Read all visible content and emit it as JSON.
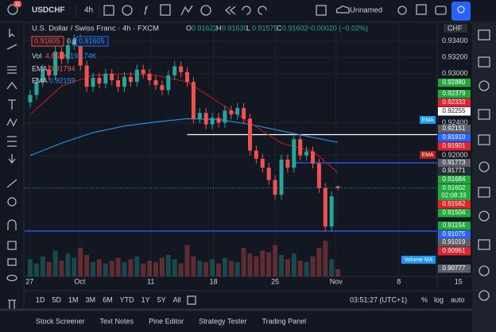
{
  "toolbar": {
    "symbol": "USDCHF",
    "interval": "4h",
    "badge": "11",
    "layout": "Unnamed"
  },
  "legend": {
    "title": "U.S. Dollar / Swiss Franc · 4h · FXCM",
    "ohlc": [
      {
        "key": "O",
        "value": "0.91622"
      },
      {
        "key": "H",
        "value": "0.91630"
      },
      {
        "key": "L",
        "value": "0.91575"
      },
      {
        "key": "C",
        "value": "0.91602"
      }
    ],
    "change": "−0.00020 (−0.02%)",
    "bid": "0.91605",
    "spread": "0.3",
    "ask": "0.91605",
    "volume": {
      "label": "Vol",
      "value": "4.851K",
      "ma": "19.174K"
    },
    "emas": [
      {
        "label": "EMA",
        "value": "0.91794",
        "color": "#ef5350"
      },
      {
        "label": "EMA",
        "value": "0.92159",
        "color": "#2196f3"
      }
    ]
  },
  "chart": {
    "type": "candlestick",
    "ylim": [
      0.9052,
      0.9363
    ],
    "yticks": [
      {
        "value": 0.934,
        "label": "0.93400"
      },
      {
        "value": 0.932,
        "label": "0.93200"
      },
      {
        "value": 0.93,
        "label": "0.93000"
      },
      {
        "value": 0.924,
        "label": "0.92400"
      },
      {
        "value": 0.92,
        "label": "0.92000"
      }
    ],
    "xticks": [
      {
        "value": -0.1,
        "label": "27"
      },
      {
        "value": 7.9,
        "label": "Oct"
      },
      {
        "value": 19.2,
        "label": "11"
      },
      {
        "value": 29.2,
        "label": "18"
      },
      {
        "value": 39,
        "label": "25"
      },
      {
        "value": 48.7,
        "label": "Nov"
      },
      {
        "value": 58.7,
        "label": "8"
      },
      {
        "value": 68.2,
        "label": "15"
      }
    ],
    "currency": "CHF",
    "up_color": "#26a69a",
    "down_color": "#ef5350",
    "candles": [
      [
        0.9265,
        0.928,
        0.9259,
        0.9274
      ],
      [
        0.9274,
        0.9296,
        0.9268,
        0.929
      ],
      [
        0.929,
        0.9311,
        0.9284,
        0.9305
      ],
      [
        0.9305,
        0.9311,
        0.9292,
        0.9298
      ],
      [
        0.9298,
        0.9333,
        0.9292,
        0.9327
      ],
      [
        0.9327,
        0.9333,
        0.9312,
        0.9318
      ],
      [
        0.9318,
        0.9341,
        0.9312,
        0.9335
      ],
      [
        0.9335,
        0.9348,
        0.9329,
        0.9342
      ],
      [
        0.9342,
        0.9348,
        0.9304,
        0.931
      ],
      [
        0.931,
        0.9316,
        0.9278,
        0.9284
      ],
      [
        0.9284,
        0.9301,
        0.9278,
        0.9295
      ],
      [
        0.9295,
        0.9301,
        0.9282,
        0.9288
      ],
      [
        0.9288,
        0.9306,
        0.9282,
        0.93
      ],
      [
        0.93,
        0.9306,
        0.9286,
        0.9292
      ],
      [
        0.9292,
        0.9298,
        0.9278,
        0.9284
      ],
      [
        0.9284,
        0.9302,
        0.9278,
        0.9296
      ],
      [
        0.9296,
        0.9302,
        0.9284,
        0.929
      ],
      [
        0.929,
        0.9311,
        0.9284,
        0.9305
      ],
      [
        0.9305,
        0.9311,
        0.9294,
        0.93
      ],
      [
        0.93,
        0.9306,
        0.9286,
        0.9292
      ],
      [
        0.9292,
        0.9298,
        0.928,
        0.9286
      ],
      [
        0.9286,
        0.9292,
        0.9274,
        0.928
      ],
      [
        0.928,
        0.9304,
        0.9274,
        0.9298
      ],
      [
        0.9298,
        0.9315,
        0.9292,
        0.9309
      ],
      [
        0.9309,
        0.9315,
        0.9296,
        0.9302
      ],
      [
        0.9302,
        0.9308,
        0.9284,
        0.929
      ],
      [
        0.929,
        0.9296,
        0.9239,
        0.9245
      ],
      [
        0.9245,
        0.9258,
        0.9239,
        0.9252
      ],
      [
        0.9252,
        0.9258,
        0.9232,
        0.9238
      ],
      [
        0.9238,
        0.9252,
        0.9232,
        0.9246
      ],
      [
        0.9246,
        0.9252,
        0.9234,
        0.924
      ],
      [
        0.924,
        0.9261,
        0.9234,
        0.9255
      ],
      [
        0.9255,
        0.9261,
        0.9244,
        0.925
      ],
      [
        0.925,
        0.9264,
        0.9244,
        0.9258
      ],
      [
        0.9258,
        0.9264,
        0.9239,
        0.9245
      ],
      [
        0.9245,
        0.9251,
        0.92,
        0.9206
      ],
      [
        0.9206,
        0.9212,
        0.919,
        0.9196
      ],
      [
        0.9196,
        0.9202,
        0.9179,
        0.9185
      ],
      [
        0.9185,
        0.9191,
        0.9164,
        0.917
      ],
      [
        0.917,
        0.9176,
        0.9146,
        0.9152
      ],
      [
        0.9152,
        0.9201,
        0.9146,
        0.9195
      ],
      [
        0.9195,
        0.9201,
        0.9179,
        0.9185
      ],
      [
        0.9185,
        0.9226,
        0.9179,
        0.922
      ],
      [
        0.922,
        0.9226,
        0.9194,
        0.92
      ],
      [
        0.92,
        0.9211,
        0.9194,
        0.9205
      ],
      [
        0.9205,
        0.9211,
        0.9184,
        0.919
      ],
      [
        0.919,
        0.9196,
        0.9154,
        0.916
      ],
      [
        0.916,
        0.9166,
        0.9107,
        0.9113
      ],
      [
        0.9113,
        0.9156,
        0.9107,
        0.915
      ],
      [
        0.91622,
        0.9163,
        0.91575,
        0.91602
      ]
    ],
    "volumes": [
      12,
      9,
      14,
      10,
      18,
      11,
      16,
      13,
      20,
      15,
      10,
      12,
      9,
      11,
      13,
      10,
      12,
      14,
      9,
      11,
      10,
      13,
      15,
      12,
      9,
      22,
      14,
      11,
      10,
      12,
      9,
      13,
      11,
      10,
      20,
      16,
      14,
      18,
      17,
      22,
      15,
      12,
      16,
      11,
      10,
      14,
      20,
      25,
      12,
      5
    ],
    "emas": [
      {
        "color": "#2196f3",
        "index": [
          0,
          5,
          10,
          15,
          20,
          25,
          30,
          35,
          40,
          45,
          49
        ],
        "values": [
          0.92,
          0.9215,
          0.9228,
          0.9236,
          0.9241,
          0.9245,
          0.9244,
          0.9238,
          0.923,
          0.9222,
          0.9216
        ]
      },
      {
        "color": "#b71c1c",
        "index": [
          0,
          5,
          10,
          15,
          20,
          25,
          30,
          35,
          40,
          45,
          49
        ],
        "values": [
          0.925,
          0.9285,
          0.9298,
          0.93,
          0.9298,
          0.929,
          0.9265,
          0.924,
          0.9215,
          0.9205,
          0.91794
        ]
      }
    ],
    "lines": [
      {
        "value": 0.92255,
        "color": "#ffffff",
        "start": 25
      },
      {
        "value": 0.9191,
        "color": "#2962ff",
        "start": 42
      },
      {
        "value": 0.91075,
        "color": "#2962ff",
        "start": -1
      }
    ],
    "current": 0.91602,
    "chart_tags": [
      {
        "text": "EMA",
        "color": "#2196f3"
      },
      {
        "text": "EMA",
        "color": "#b71c1c"
      },
      {
        "text": "Volume MA",
        "color": "#2196f3"
      }
    ]
  },
  "price_tags": [
    {
      "text": "0.92880",
      "color": "#1faa3a"
    },
    {
      "text": "0.92379",
      "color": "#1faa3a"
    },
    {
      "text": "0.92333",
      "color": "#e0242f"
    },
    {
      "text": "0.92255",
      "color": "#ffffff"
    },
    {
      "text": "0.92151",
      "color": "#5d606b"
    },
    {
      "text": "0.91910",
      "color": "#2962ff"
    },
    {
      "text": "0.91901",
      "color": "#e0242f"
    },
    {
      "text": "0.91773",
      "color": "#5d606b"
    },
    {
      "text": "0.91771",
      "color": "#2a2e39"
    },
    {
      "text": "0.91684",
      "color": "#1faa3a"
    },
    {
      "text": "0.91602",
      "color": "#1faa3a",
      "sub": "02:08:33"
    },
    {
      "text": "0.91562",
      "color": "#e0242f"
    },
    {
      "text": "0.91504",
      "color": "#1faa3a"
    },
    {
      "text": "0.91154",
      "color": "#1faa3a"
    },
    {
      "text": "0.91075",
      "color": "#2962ff"
    },
    {
      "text": "0.91019",
      "color": "#5d606b"
    },
    {
      "text": "0.90961",
      "color": "#e0242f"
    },
    {
      "text": "0.90777",
      "color": "#5d606b"
    }
  ],
  "ranges": [
    "1D",
    "5D",
    "1M",
    "3M",
    "6M",
    "YTD",
    "1Y",
    "5Y",
    "All"
  ],
  "status": {
    "clock": "03:51:27 (UTC+1)",
    "percent": "%",
    "log": "log",
    "auto": "auto"
  },
  "tabs": [
    "Stock Screener",
    "Text Notes",
    "Pine Editor",
    "Strategy Tester",
    "Trading Panel"
  ]
}
